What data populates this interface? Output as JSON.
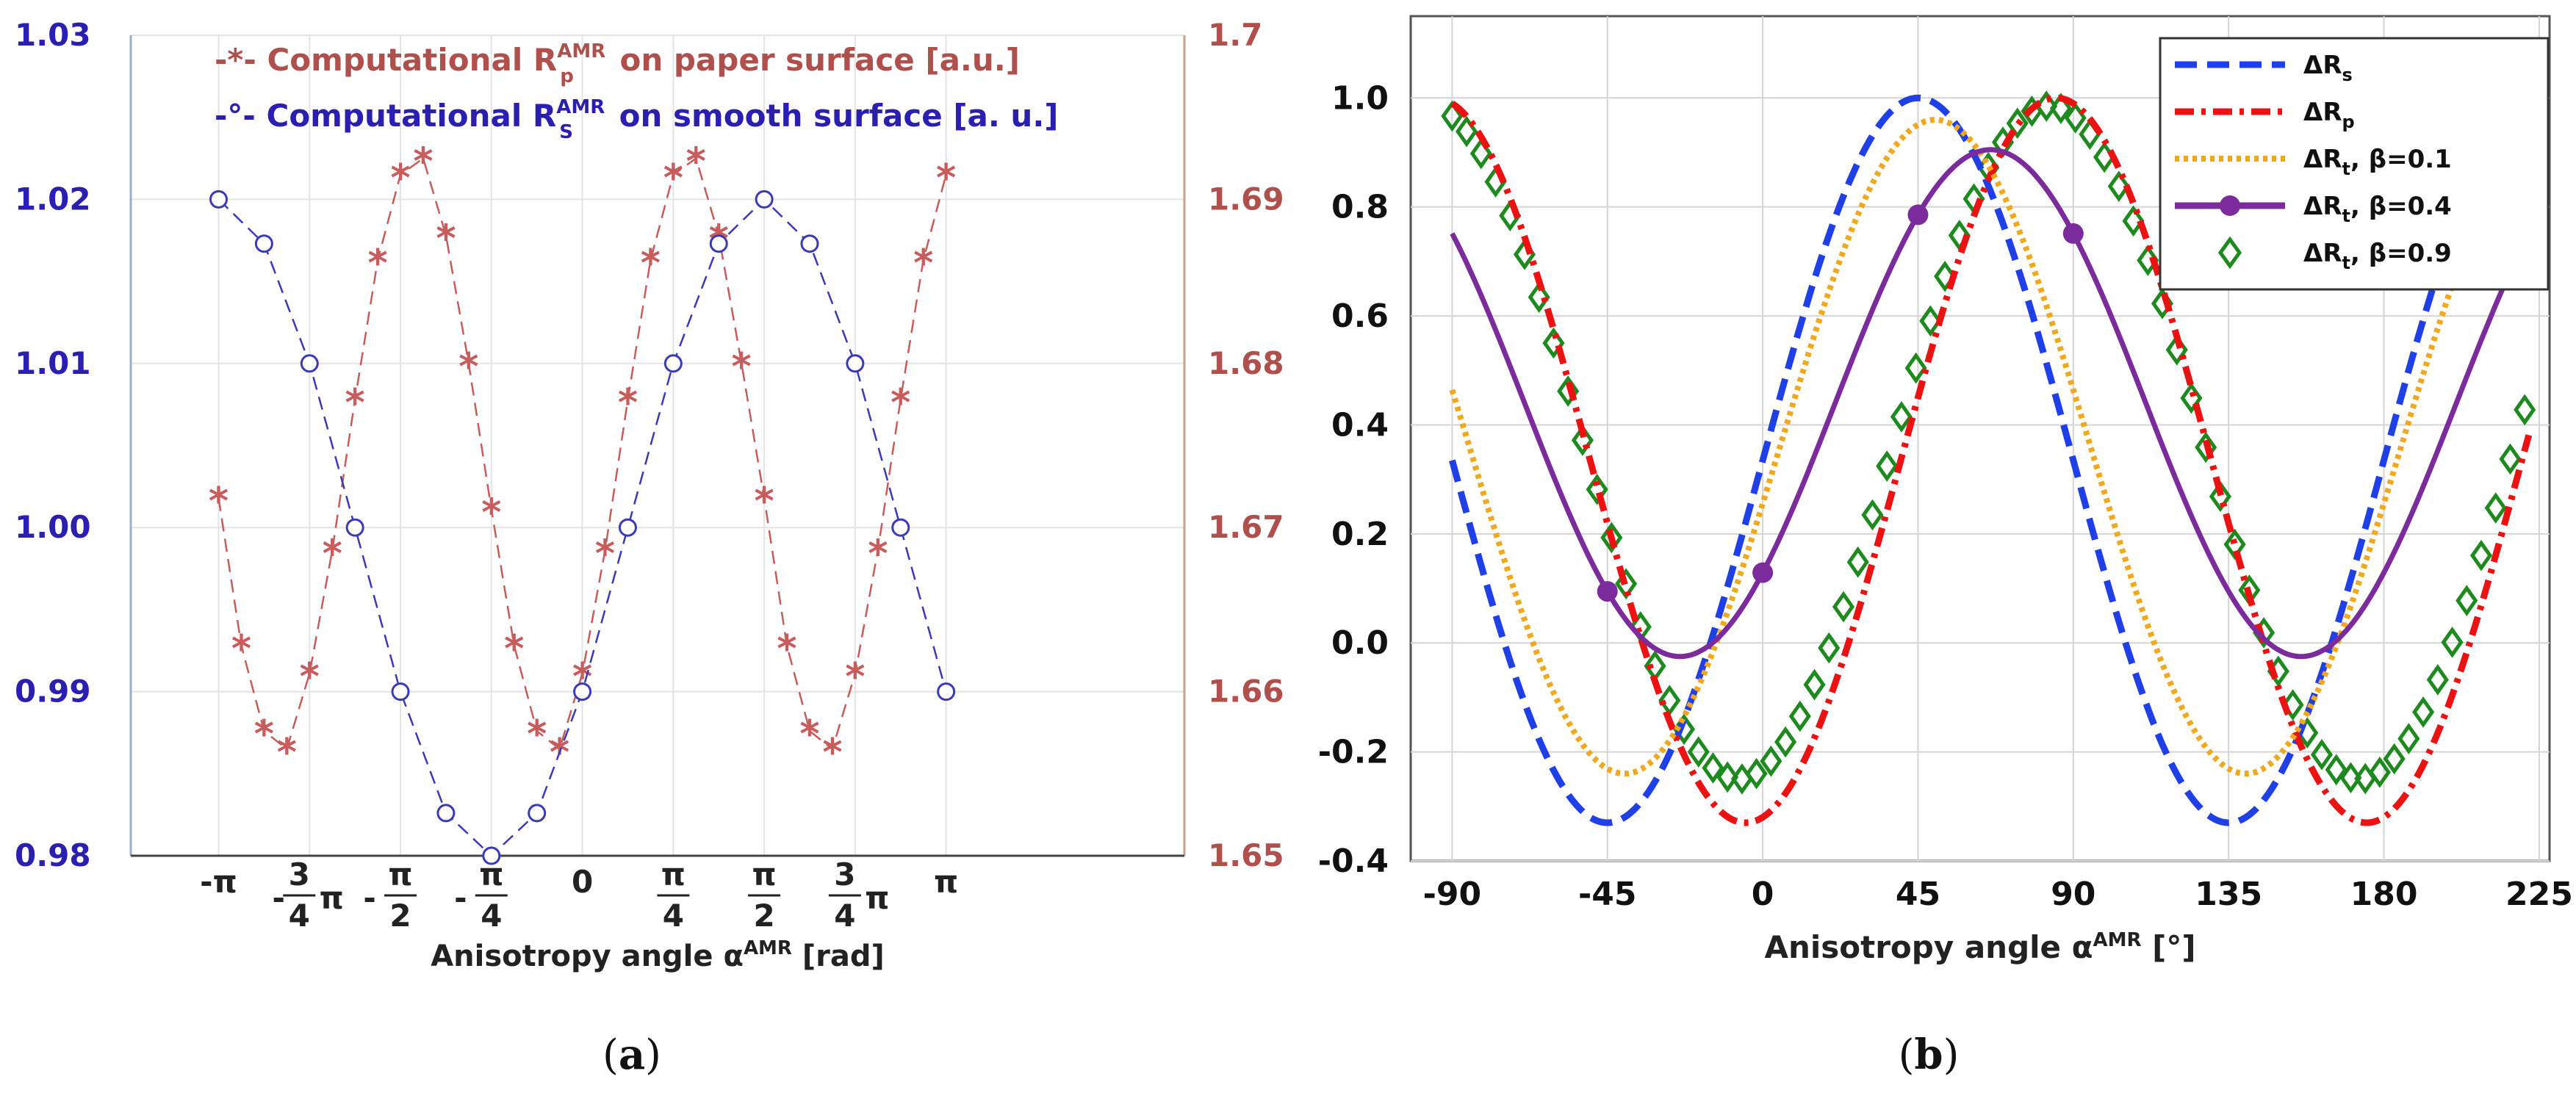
{
  "chart_data": [
    {
      "id": "a",
      "type": "line",
      "panel_label": "a",
      "xlabel": "Anisotropy angle α",
      "xlabel_sup": "AMR",
      "xlabel_unit": "[rad]",
      "xlim": [
        -3.9,
        5.2
      ],
      "x_ticks": [
        {
          "value": -3.14159,
          "label": "-π"
        },
        {
          "value": -2.35619,
          "label": "-3/4π"
        },
        {
          "value": -1.5708,
          "label": "-π/2"
        },
        {
          "value": -0.7854,
          "label": "-π/4"
        },
        {
          "value": 0,
          "label": "0"
        },
        {
          "value": 0.7854,
          "label": "π/4"
        },
        {
          "value": 1.5708,
          "label": "π/2"
        },
        {
          "value": 2.35619,
          "label": "3/4π"
        },
        {
          "value": 3.14159,
          "label": "π"
        }
      ],
      "y_left": {
        "range": [
          0.98,
          1.03
        ],
        "ticks": [
          "0.98",
          "0.99",
          "1.00",
          "1.01",
          "1.02",
          "1.03"
        ],
        "color": "#2a1fb0"
      },
      "y_right": {
        "range": [
          1.65,
          1.7
        ],
        "ticks": [
          "1.65",
          "1.66",
          "1.67",
          "1.68",
          "1.69",
          "1.7"
        ],
        "color": "#b0504c"
      },
      "legend": [
        {
          "marker": "-*-",
          "text_before": "Computational R",
          "sup": "AMR",
          "sub": "p",
          "text_after": " on paper surface [a.u.]",
          "color": "#b0504c"
        },
        {
          "marker": "-°-",
          "text_before": "Computational R",
          "sup": "AMR",
          "sub": "S",
          "text_after": " on smooth surface [a. u.]",
          "color": "#2a1fb0"
        }
      ],
      "series": [
        {
          "name": "Computational R_p^AMR on paper surface [a.u.]",
          "axis": "right",
          "marker": "star",
          "color": "#c85c5c",
          "x": [
            -3.1416,
            -2.9452,
            -2.7489,
            -2.5525,
            -2.3562,
            -2.1598,
            -1.9635,
            -1.7671,
            -1.5708,
            -1.3744,
            -1.1781,
            -0.9817,
            -0.7854,
            -0.589,
            -0.3927,
            -0.1963,
            0,
            0.1963,
            0.3927,
            0.589,
            0.7854,
            0.9817,
            1.1781,
            1.3744,
            1.5708,
            1.7671,
            1.9635,
            2.1598,
            2.3562,
            2.5525,
            2.7489,
            2.9452,
            3.1416
          ],
          "values": [
            1.6718,
            1.6628,
            1.6576,
            1.6565,
            1.6611,
            1.6686,
            1.6778,
            1.6863,
            1.6915,
            1.6925,
            1.6878,
            1.68,
            1.6711,
            1.6628,
            1.6576,
            1.6565,
            1.6611,
            1.6686,
            1.6778,
            1.6863,
            1.6915,
            1.6925,
            1.6878,
            1.68,
            1.6718,
            1.6628,
            1.6576,
            1.6565,
            1.6611,
            1.6686,
            1.6778,
            1.6863,
            1.6915
          ]
        },
        {
          "name": "Computational R_S^AMR on smooth surface [a. u.]",
          "axis": "left",
          "marker": "circle",
          "color": "#3a3ab8",
          "x": [
            -3.1416,
            -2.7489,
            -2.3562,
            -1.9635,
            -1.5708,
            -1.1781,
            -0.7854,
            -0.3927,
            0,
            0.3927,
            0.7854,
            1.1781,
            1.5708,
            1.9635,
            2.3562,
            2.7489,
            3.1416
          ],
          "values": [
            1.02,
            1.0173,
            1.01,
            1.0,
            0.99,
            0.9826,
            0.98,
            0.9826,
            0.99,
            1.0,
            1.01,
            1.0173,
            1.02,
            1.0173,
            1.01,
            1.0,
            0.99
          ]
        }
      ]
    },
    {
      "id": "b",
      "type": "line",
      "panel_label": "b",
      "xlabel": "Anisotropy angle α",
      "xlabel_sup": "AMR",
      "xlabel_unit": "[°]",
      "xlim": [
        -102,
        228
      ],
      "ylim": [
        -0.4,
        1.15
      ],
      "grid": true,
      "x_ticks": [
        "-90",
        "-45",
        "0",
        "45",
        "90",
        "135",
        "180",
        "225"
      ],
      "y_ticks": [
        "-0.4",
        "-0.2",
        "0.0",
        "0.2",
        "0.4",
        "0.6",
        "0.8",
        "1.0"
      ],
      "legend": [
        {
          "label": "ΔR",
          "sub": "s",
          "suffix": "",
          "color": "#1f3fe8",
          "style": "dashed"
        },
        {
          "label": "ΔR",
          "sub": "p",
          "suffix": "",
          "color": "#ee1111",
          "style": "dashdot"
        },
        {
          "label": "ΔR",
          "sub": "t",
          "suffix": ", β=0.1",
          "color": "#f0a81c",
          "style": "dotted"
        },
        {
          "label": "ΔR",
          "sub": "t",
          "suffix": ", β=0.4",
          "color": "#7b2b9c",
          "style": "solid-dot"
        },
        {
          "label": "ΔR",
          "sub": "t",
          "suffix": ", β=0.9",
          "color": "#1d8a1d",
          "style": "diamond"
        }
      ],
      "series": [
        {
          "name": "ΔR_s",
          "model": "sin2",
          "offset": 45,
          "period": 180,
          "amp_lo": -0.33,
          "amp_hi": 1.0,
          "x_range": [
            -90,
            220
          ],
          "color": "#1f3fe8",
          "style": "dashed"
        },
        {
          "name": "ΔR_p",
          "model": "sin2",
          "offset": 5,
          "period": 180,
          "amp_lo": -0.33,
          "amp_hi": 1.0,
          "x_range": [
            -90,
            222
          ],
          "color": "#ee1111",
          "style": "dashdot"
        },
        {
          "name": "ΔR_t, β=0.1",
          "model": "sin2",
          "offset": 40,
          "period": 180,
          "amp_lo": -0.24,
          "amp_hi": 0.96,
          "x_range": [
            -90,
            222
          ],
          "color": "#f0a81c",
          "style": "dotted"
        },
        {
          "name": "ΔR_t, β=0.4",
          "model": "sin2",
          "offset": 24,
          "period": 180,
          "amp_lo": -0.025,
          "amp_hi": 0.905,
          "x_range": [
            -90,
            222
          ],
          "color": "#7b2b9c",
          "style": "solid",
          "marker_x": [
            -45,
            0,
            45,
            90
          ]
        },
        {
          "name": "ΔR_t, β=0.9",
          "model": "sin2",
          "offset": 7,
          "period": 180,
          "amp_lo": -0.25,
          "amp_hi": 0.985,
          "x_range": [
            -90,
            223
          ],
          "color": "#1d8a1d",
          "style": "diamond"
        }
      ]
    }
  ]
}
